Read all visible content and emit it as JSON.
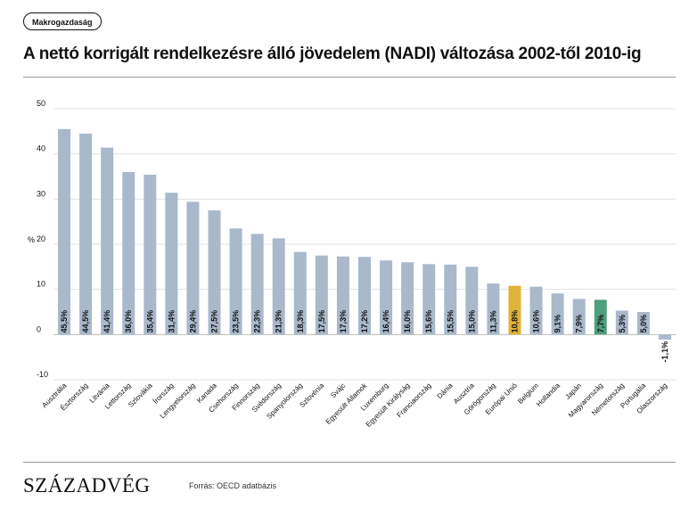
{
  "header": {
    "tag": "Makrogazdaság",
    "title": "A nettó korrigált rendelkezésre álló jövedelem (NADI) változása 2002-től 2010-ig"
  },
  "footer": {
    "logo": "SZÁZADVÉG",
    "source": "Forrás: OECD adatbázis"
  },
  "colors": {
    "bar_default": "#a9b9cb",
    "bar_highlight_eu": "#e0b43a",
    "bar_highlight_hu": "#4f9e7e",
    "grid": "#e3e3e3",
    "text": "#111111"
  },
  "chart_data": {
    "type": "bar",
    "ylabel": "%",
    "xlabel": "",
    "ylim": [
      -10,
      50
    ],
    "yticks": [
      50,
      40,
      30,
      20,
      10,
      0,
      -10
    ],
    "grid": true,
    "categories": [
      "Ausztrália",
      "Észtország",
      "Litvánia",
      "Lettország",
      "Szlovákia",
      "Írország",
      "Lengyelország",
      "Kanada",
      "Csehország",
      "Finnország",
      "Svédország",
      "Spanyolország",
      "Szlovénia",
      "Svájc",
      "Egyesült Államok",
      "Luxemburg",
      "Egyesült Királyság",
      "Franciaország",
      "Dánia",
      "Ausztria",
      "Görögország",
      "Európai Unió",
      "Belgium",
      "Hollandia",
      "Japán",
      "Magyarország",
      "Németország",
      "Portugália",
      "Olaszország"
    ],
    "values": [
      45.5,
      44.5,
      41.4,
      36.0,
      35.4,
      31.4,
      29.4,
      27.5,
      23.5,
      22.3,
      21.3,
      18.3,
      17.5,
      17.3,
      17.2,
      16.4,
      16.0,
      15.6,
      15.5,
      15.0,
      11.3,
      10.8,
      10.6,
      9.1,
      7.9,
      7.7,
      5.3,
      5.0,
      -1.1
    ],
    "value_labels": [
      "45,5%",
      "44,5%",
      "41,4%",
      "36,0%",
      "35,4%",
      "31,4%",
      "29,4%",
      "27,5%",
      "23,5%",
      "22,3%",
      "21,3%",
      "18,3%",
      "17,5%",
      "17,3%",
      "17,2%",
      "16,4%",
      "16,0%",
      "15,6%",
      "15,5%",
      "15,0%",
      "11,3%",
      "10,8%",
      "10,6%",
      "9,1%",
      "7,9%",
      "7,7%",
      "5,3%",
      "5,0%",
      "-1,1%"
    ],
    "highlight": {
      "Európai Unió": "bar_highlight_eu",
      "Magyarország": "bar_highlight_hu"
    }
  }
}
